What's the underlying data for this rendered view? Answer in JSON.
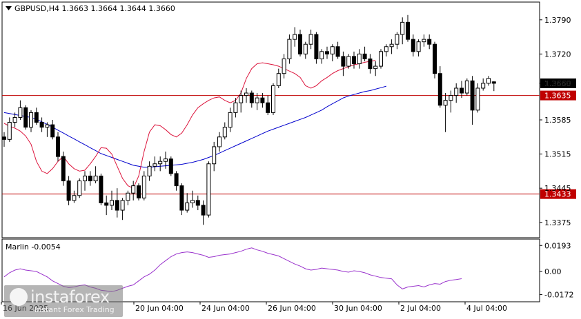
{
  "header": {
    "symbol_label": "GBPUSD,H4  1.3663 1.3664 1.3644 1.3660"
  },
  "indicator": {
    "label": "Marlin -0.0054"
  },
  "watermark": {
    "brand": "instaforex",
    "tagline": "Instant Forex Trading"
  },
  "colors": {
    "bull_candle": "#ffffff",
    "bear_candle": "#000000",
    "ma_slow": "#0000cd",
    "ma_fast": "#dc143c",
    "level_line": "#c00000",
    "level_tag": "#c00000",
    "oscillator": "#9932cc"
  },
  "chart_data": [
    {
      "type": "candlestick",
      "title": "GBPUSD,H4",
      "ylim": [
        1.3345,
        1.3825
      ],
      "y_ticks": [
        "1.3790",
        "1.3720",
        "1.3660",
        "1.3585",
        "1.3515",
        "1.3445",
        "1.3375"
      ],
      "x_ticks": [
        "16 Jun 2025",
        "20 Jun 04:00",
        "24 Jun 04:00",
        "26 Jun 04:00",
        "30 Jun 04:00",
        "2 Jul 04:00",
        "4 Jul 04:00"
      ],
      "horizontal_levels": [
        {
          "value": 1.3635,
          "label": "1.3635"
        },
        {
          "value": 1.3433,
          "label": "1.3433"
        }
      ],
      "last_price": {
        "value": 1.366,
        "label": "1.3660"
      },
      "candles": [
        [
          1.355,
          1.356,
          1.353,
          1.3545
        ],
        [
          1.3545,
          1.359,
          1.354,
          1.358
        ],
        [
          1.358,
          1.36,
          1.357,
          1.359
        ],
        [
          1.359,
          1.3625,
          1.3585,
          1.361
        ],
        [
          1.361,
          1.3615,
          1.3565,
          1.357
        ],
        [
          1.357,
          1.3605,
          1.356,
          1.36
        ],
        [
          1.36,
          1.361,
          1.3575,
          1.358
        ],
        [
          1.358,
          1.359,
          1.356,
          1.357
        ],
        [
          1.357,
          1.358,
          1.355,
          1.3575
        ],
        [
          1.3575,
          1.3585,
          1.3545,
          1.355
        ],
        [
          1.355,
          1.356,
          1.35,
          1.351
        ],
        [
          1.351,
          1.352,
          1.345,
          1.346
        ],
        [
          1.346,
          1.347,
          1.341,
          1.342
        ],
        [
          1.342,
          1.344,
          1.3415,
          1.343
        ],
        [
          1.343,
          1.3465,
          1.3425,
          1.346
        ],
        [
          1.346,
          1.348,
          1.344,
          1.347
        ],
        [
          1.347,
          1.348,
          1.345,
          1.346
        ],
        [
          1.346,
          1.349,
          1.3455,
          1.347
        ],
        [
          1.347,
          1.3475,
          1.341,
          1.3415
        ],
        [
          1.3415,
          1.343,
          1.339,
          1.341
        ],
        [
          1.341,
          1.344,
          1.34,
          1.342
        ],
        [
          1.342,
          1.3445,
          1.3385,
          1.34
        ],
        [
          1.34,
          1.3425,
          1.338,
          1.342
        ],
        [
          1.342,
          1.344,
          1.341,
          1.3435
        ],
        [
          1.3435,
          1.346,
          1.342,
          1.345
        ],
        [
          1.345,
          1.3455,
          1.342,
          1.3425
        ],
        [
          1.3425,
          1.348,
          1.342,
          1.347
        ],
        [
          1.347,
          1.35,
          1.346,
          1.349
        ],
        [
          1.349,
          1.351,
          1.348,
          1.3495
        ],
        [
          1.3495,
          1.351,
          1.348,
          1.35
        ],
        [
          1.35,
          1.352,
          1.3485,
          1.3505
        ],
        [
          1.3505,
          1.351,
          1.347,
          1.3475
        ],
        [
          1.3475,
          1.348,
          1.344,
          1.345
        ],
        [
          1.345,
          1.3455,
          1.339,
          1.34
        ],
        [
          1.34,
          1.3435,
          1.3395,
          1.3415
        ],
        [
          1.3415,
          1.344,
          1.3405,
          1.342
        ],
        [
          1.342,
          1.343,
          1.34,
          1.341
        ],
        [
          1.341,
          1.342,
          1.337,
          1.339
        ],
        [
          1.339,
          1.35,
          1.3385,
          1.3495
        ],
        [
          1.3495,
          1.354,
          1.348,
          1.353
        ],
        [
          1.353,
          1.356,
          1.352,
          1.355
        ],
        [
          1.355,
          1.358,
          1.3545,
          1.357
        ],
        [
          1.357,
          1.361,
          1.356,
          1.36
        ],
        [
          1.36,
          1.363,
          1.359,
          1.362
        ],
        [
          1.362,
          1.3645,
          1.36,
          1.3635
        ],
        [
          1.3635,
          1.365,
          1.362,
          1.364
        ],
        [
          1.364,
          1.3645,
          1.361,
          1.362
        ],
        [
          1.362,
          1.364,
          1.3605,
          1.363
        ],
        [
          1.363,
          1.364,
          1.361,
          1.362
        ],
        [
          1.362,
          1.3635,
          1.3595,
          1.36
        ],
        [
          1.36,
          1.366,
          1.3595,
          1.3655
        ],
        [
          1.3655,
          1.369,
          1.365,
          1.368
        ],
        [
          1.368,
          1.372,
          1.367,
          1.371
        ],
        [
          1.371,
          1.376,
          1.37,
          1.375
        ],
        [
          1.375,
          1.3775,
          1.3735,
          1.376
        ],
        [
          1.376,
          1.377,
          1.3715,
          1.372
        ],
        [
          1.372,
          1.3745,
          1.371,
          1.374
        ],
        [
          1.374,
          1.377,
          1.373,
          1.376
        ],
        [
          1.376,
          1.3765,
          1.37,
          1.371
        ],
        [
          1.371,
          1.373,
          1.37,
          1.3725
        ],
        [
          1.3725,
          1.3735,
          1.371,
          1.372
        ],
        [
          1.372,
          1.374,
          1.3705,
          1.3735
        ],
        [
          1.3735,
          1.3745,
          1.371,
          1.3715
        ],
        [
          1.3715,
          1.3725,
          1.3675,
          1.3695
        ],
        [
          1.3695,
          1.372,
          1.369,
          1.3715
        ],
        [
          1.3715,
          1.3725,
          1.369,
          1.37
        ],
        [
          1.37,
          1.373,
          1.369,
          1.372
        ],
        [
          1.372,
          1.3735,
          1.3705,
          1.371
        ],
        [
          1.371,
          1.372,
          1.368,
          1.369
        ],
        [
          1.369,
          1.3705,
          1.3675,
          1.3695
        ],
        [
          1.3695,
          1.373,
          1.369,
          1.3725
        ],
        [
          1.3725,
          1.374,
          1.3715,
          1.3735
        ],
        [
          1.3735,
          1.375,
          1.372,
          1.374
        ],
        [
          1.374,
          1.3765,
          1.373,
          1.376
        ],
        [
          1.376,
          1.3795,
          1.374,
          1.3785
        ],
        [
          1.3785,
          1.38,
          1.3745,
          1.375
        ],
        [
          1.375,
          1.376,
          1.3715,
          1.3725
        ],
        [
          1.3725,
          1.375,
          1.3715,
          1.3745
        ],
        [
          1.3745,
          1.376,
          1.3735,
          1.375
        ],
        [
          1.375,
          1.376,
          1.373,
          1.374
        ],
        [
          1.374,
          1.3745,
          1.367,
          1.368
        ],
        [
          1.368,
          1.3695,
          1.361,
          1.3615
        ],
        [
          1.3615,
          1.364,
          1.356,
          1.3625
        ],
        [
          1.3625,
          1.3645,
          1.36,
          1.3635
        ],
        [
          1.3635,
          1.366,
          1.362,
          1.365
        ],
        [
          1.365,
          1.3665,
          1.363,
          1.364
        ],
        [
          1.364,
          1.367,
          1.3635,
          1.3665
        ],
        [
          1.3665,
          1.3675,
          1.3575,
          1.3605
        ],
        [
          1.3605,
          1.366,
          1.36,
          1.365
        ],
        [
          1.365,
          1.367,
          1.3645,
          1.366
        ],
        [
          1.366,
          1.3675,
          1.3655,
          1.367
        ],
        [
          1.3663,
          1.3664,
          1.3644,
          1.366
        ]
      ],
      "series": [
        {
          "values": [
            1.36,
            1.3598,
            1.3596,
            1.3594,
            1.3592,
            1.359,
            1.3586,
            1.3581,
            1.3576,
            1.357,
            1.3564,
            1.3558,
            1.3552,
            1.3546,
            1.354,
            1.3534,
            1.3528,
            1.3522,
            1.3516,
            1.3512,
            1.3508,
            1.3504,
            1.35,
            1.3496,
            1.3492,
            1.349,
            1.3488,
            1.3488,
            1.3489,
            1.349,
            1.3491,
            1.3492,
            1.3493,
            1.3494,
            1.3496,
            1.3498,
            1.3501,
            1.3504,
            1.3508,
            1.3512,
            1.3517,
            1.3522,
            1.3527,
            1.3532,
            1.3537,
            1.3542,
            1.3547,
            1.3552,
            1.3557,
            1.3562,
            1.3566,
            1.357,
            1.3574,
            1.3578,
            1.3582,
            1.3586,
            1.359,
            1.3595,
            1.36,
            1.3605,
            1.3612,
            1.3618,
            1.3624,
            1.363,
            1.3634,
            1.3637,
            1.364,
            1.3643,
            1.3645,
            1.3648,
            1.3651,
            1.3654
          ]
        },
        {
          "values": [
            1.3578,
            1.3572,
            1.3568,
            1.3562,
            1.3552,
            1.3535,
            1.35,
            1.348,
            1.3475,
            1.3485,
            1.35,
            1.351,
            1.3495,
            1.3485,
            1.348,
            1.3482,
            1.3495,
            1.351,
            1.3528,
            1.3527,
            1.3515,
            1.349,
            1.3465,
            1.345,
            1.3445,
            1.347,
            1.352,
            1.356,
            1.3575,
            1.3573,
            1.3565,
            1.3555,
            1.355,
            1.3558,
            1.3575,
            1.3595,
            1.361,
            1.3618,
            1.3625,
            1.363,
            1.3632,
            1.3625,
            1.362,
            1.3625,
            1.364,
            1.367,
            1.369,
            1.37,
            1.3702,
            1.37,
            1.3698,
            1.3695,
            1.369,
            1.3685,
            1.368,
            1.3672,
            1.3655,
            1.365,
            1.3655,
            1.3665,
            1.3672,
            1.368,
            1.3686,
            1.369,
            1.3694,
            1.3698,
            1.37,
            1.3703,
            1.3705,
            1.3707
          ]
        }
      ]
    },
    {
      "type": "line",
      "title": "Marlin",
      "ylim": [
        -0.0215,
        0.0225
      ],
      "y_ticks": [
        "0.0193",
        "0.00",
        "-0.0172"
      ],
      "series": [
        {
          "values": [
            -0.004,
            -0.001,
            0.001,
            0.002,
            0.001,
            0.0005,
            0.0,
            -0.002,
            -0.004,
            -0.007,
            -0.009,
            -0.011,
            -0.012,
            -0.0115,
            -0.0105,
            -0.01,
            -0.0115,
            -0.0125,
            -0.014,
            -0.0145,
            -0.015,
            -0.014,
            -0.0125,
            -0.011,
            -0.01,
            -0.007,
            -0.004,
            -0.002,
            0.001,
            0.005,
            0.008,
            0.011,
            0.013,
            0.014,
            0.0145,
            0.014,
            0.013,
            0.012,
            0.0105,
            0.011,
            0.012,
            0.0125,
            0.013,
            0.014,
            0.015,
            0.0165,
            0.0175,
            0.016,
            0.015,
            0.0135,
            0.0125,
            0.0115,
            0.0095,
            0.0075,
            0.0055,
            0.004,
            0.002,
            0.001,
            0.0015,
            0.0025,
            0.002,
            0.0015,
            0.001,
            0.0,
            -0.0005,
            0.0005,
            0.0,
            -0.001,
            -0.0025,
            -0.0035,
            -0.0045,
            -0.005,
            -0.0055,
            -0.01,
            -0.013,
            -0.0115,
            -0.011,
            -0.0105,
            -0.0115,
            -0.01,
            -0.009,
            -0.0095,
            -0.0075,
            -0.0065,
            -0.006,
            -0.0054
          ]
        }
      ]
    }
  ]
}
